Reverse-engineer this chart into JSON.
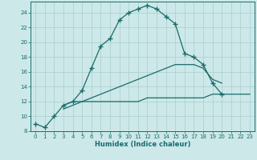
{
  "xlabel": "Humidex (Indice chaleur)",
  "x": [
    0,
    1,
    2,
    3,
    4,
    5,
    6,
    7,
    8,
    9,
    10,
    11,
    12,
    13,
    14,
    15,
    16,
    17,
    18,
    19,
    20,
    21,
    22,
    23
  ],
  "line1": [
    9.0,
    8.5,
    10.0,
    11.5,
    12.0,
    13.5,
    16.5,
    19.5,
    20.5,
    23.0,
    24.0,
    24.5,
    25.0,
    24.5,
    23.5,
    22.5,
    18.5,
    18.0,
    17.0,
    14.5,
    13.0,
    null,
    null,
    null
  ],
  "line2": [
    null,
    null,
    null,
    11.5,
    12.0,
    12.0,
    12.0,
    12.0,
    12.0,
    12.0,
    12.0,
    12.0,
    12.5,
    12.5,
    12.5,
    12.5,
    12.5,
    12.5,
    12.5,
    13.0,
    13.0,
    13.0,
    13.0,
    13.0
  ],
  "line3": [
    null,
    null,
    null,
    11.0,
    11.5,
    12.0,
    12.5,
    13.0,
    13.5,
    14.0,
    14.5,
    15.0,
    15.5,
    16.0,
    16.5,
    17.0,
    17.0,
    17.0,
    16.5,
    15.0,
    14.5,
    null,
    null,
    null
  ],
  "bg_color": "#cce8e8",
  "line_color": "#1a6b6b",
  "grid_color": "#aacece",
  "xlim": [
    -0.5,
    23.5
  ],
  "ylim": [
    8,
    25.5
  ],
  "yticks": [
    8,
    10,
    12,
    14,
    16,
    18,
    20,
    22,
    24
  ],
  "xticks": [
    0,
    1,
    2,
    3,
    4,
    5,
    6,
    7,
    8,
    9,
    10,
    11,
    12,
    13,
    14,
    15,
    16,
    17,
    18,
    19,
    20,
    21,
    22,
    23
  ]
}
